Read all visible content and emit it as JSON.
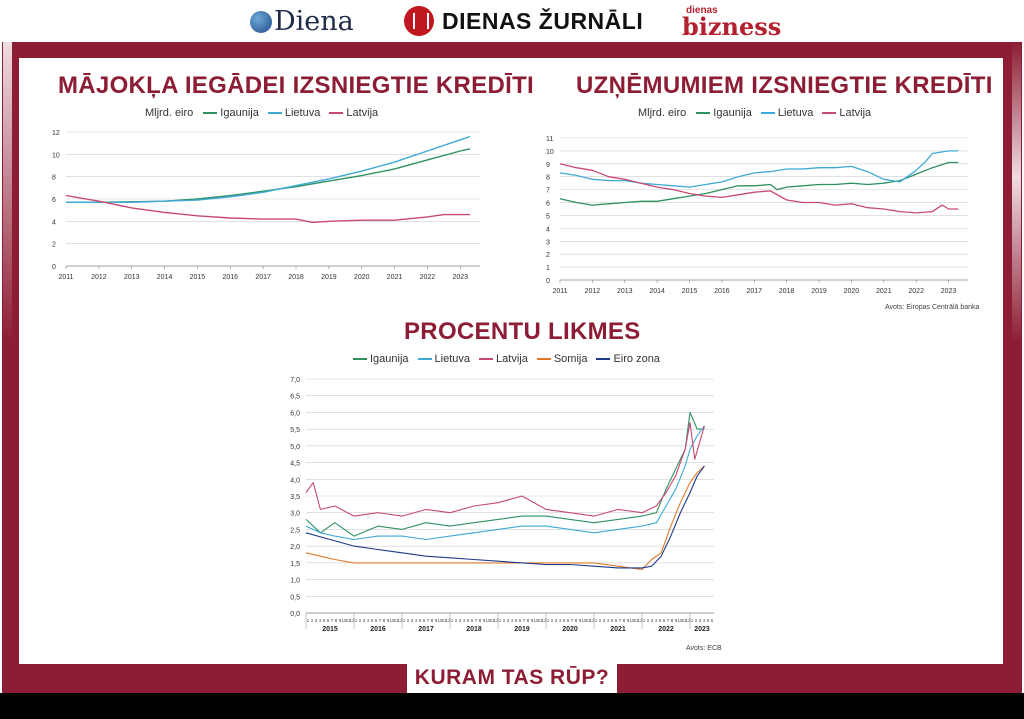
{
  "header": {
    "logos": [
      {
        "label": "Diena"
      },
      {
        "label": "DIENAS ŽURNĀLI"
      },
      {
        "label_small": "dienas",
        "label_big": "bizness"
      }
    ]
  },
  "footer": {
    "label": "KURAM TAS RŪP?"
  },
  "colors": {
    "frame": "#8d1d34",
    "igaunija": "#2e9160",
    "lietuva": "#3fa9d6",
    "latvija": "#c74a73",
    "somija": "#e07a2c",
    "eiro_zona": "#1e3a8a"
  },
  "charts": {
    "housing": {
      "title": "MĀJOKĻA IEGĀDEI IZSNIEGTIE KREDĪTI",
      "unit": "Mljrd. eiro",
      "legend": [
        {
          "name": "Igaunija",
          "color": "#2e9160"
        },
        {
          "name": "Lietuva",
          "color": "#3fa9d6"
        },
        {
          "name": "Latvija",
          "color": "#c74a73"
        }
      ]
    },
    "business": {
      "title": "UZŅĒMUMIEM IZSNIEGTIE KREDĪTI",
      "unit": "Mljrd. eiro",
      "legend": [
        {
          "name": "Igaunija",
          "color": "#2e9160"
        },
        {
          "name": "Lietuva",
          "color": "#3fa9d6"
        },
        {
          "name": "Latvija",
          "color": "#c74a73"
        }
      ],
      "source": "Avots: Eiropas Centrālā banka"
    },
    "rates": {
      "title": "PROCENTU LIKMES",
      "legend": [
        {
          "name": "Igaunija",
          "color": "#2e9160"
        },
        {
          "name": "Lietuva",
          "color": "#3fa9d6"
        },
        {
          "name": "Latvija",
          "color": "#c74a73"
        },
        {
          "name": "Somija",
          "color": "#e07a2c"
        },
        {
          "name": "Eiro zona",
          "color": "#1e3a8a"
        }
      ],
      "source": "Avots: ECB"
    }
  },
  "chart_data": [
    {
      "type": "line",
      "title": "MĀJOKĻA IEGĀDEI IZSNIEGTIE KREDĪTI",
      "ylabel": "Mljrd. eiro",
      "ylim": [
        0,
        12
      ],
      "yticks": [
        0,
        2,
        4,
        6,
        8,
        10,
        12
      ],
      "xlim": [
        2011,
        2023.6
      ],
      "xticks": [
        "2011",
        "2012",
        "2013",
        "2014",
        "2015",
        "2016",
        "2017",
        "2018",
        "2019",
        "2020",
        "2021",
        "2022",
        "2023"
      ],
      "grid": true,
      "legend_position": "top",
      "series": [
        {
          "name": "Igaunija",
          "color": "#2e9160",
          "x": [
            2011,
            2012,
            2013,
            2014,
            2015,
            2016,
            2017,
            2018,
            2019,
            2020,
            2021,
            2022,
            2023,
            2023.3
          ],
          "y": [
            5.7,
            5.7,
            5.75,
            5.8,
            6.0,
            6.3,
            6.7,
            7.1,
            7.6,
            8.1,
            8.7,
            9.5,
            10.3,
            10.5
          ]
        },
        {
          "name": "Lietuva",
          "color": "#3fa9d6",
          "x": [
            2011,
            2012,
            2013,
            2014,
            2015,
            2016,
            2017,
            2018,
            2019,
            2020,
            2021,
            2022,
            2023,
            2023.3
          ],
          "y": [
            5.7,
            5.7,
            5.7,
            5.8,
            5.9,
            6.2,
            6.6,
            7.2,
            7.8,
            8.5,
            9.3,
            10.3,
            11.3,
            11.6
          ]
        },
        {
          "name": "Latvija",
          "color": "#c74a73",
          "x": [
            2011,
            2012,
            2013,
            2014,
            2015,
            2016,
            2017,
            2018,
            2018.5,
            2019,
            2020,
            2021,
            2022,
            2022.5,
            2023,
            2023.3
          ],
          "y": [
            6.3,
            5.8,
            5.2,
            4.8,
            4.5,
            4.3,
            4.2,
            4.2,
            3.9,
            4.0,
            4.1,
            4.1,
            4.4,
            4.6,
            4.6,
            4.6
          ]
        }
      ]
    },
    {
      "type": "line",
      "title": "UZŅĒMUMIEM IZSNIEGTIE KREDĪTI",
      "ylabel": "Mljrd. eiro",
      "ylim": [
        0,
        11
      ],
      "yticks": [
        0,
        1,
        2,
        3,
        4,
        5,
        6,
        7,
        8,
        9,
        10,
        11
      ],
      "xlim": [
        2011,
        2023.6
      ],
      "xticks": [
        "2011",
        "2012",
        "2013",
        "2014",
        "2015",
        "2016",
        "2017",
        "2018",
        "2019",
        "2020",
        "2021",
        "2022",
        "2023"
      ],
      "grid": true,
      "legend_position": "top",
      "series": [
        {
          "name": "Igaunija",
          "color": "#2e9160",
          "x": [
            2011,
            2011.5,
            2012,
            2012.5,
            2013,
            2013.5,
            2014,
            2014.5,
            2015,
            2015.5,
            2016,
            2016.5,
            2017,
            2017.5,
            2017.7,
            2018,
            2018.5,
            2019,
            2019.5,
            2020,
            2020.5,
            2021,
            2021.5,
            2022,
            2022.5,
            2023,
            2023.3
          ],
          "y": [
            6.3,
            6.0,
            5.8,
            5.9,
            6.0,
            6.1,
            6.1,
            6.3,
            6.5,
            6.7,
            7.0,
            7.3,
            7.3,
            7.4,
            7.0,
            7.2,
            7.3,
            7.4,
            7.4,
            7.5,
            7.4,
            7.5,
            7.7,
            8.2,
            8.7,
            9.1,
            9.1
          ]
        },
        {
          "name": "Lietuva",
          "color": "#3fa9d6",
          "x": [
            2011,
            2011.5,
            2012,
            2012.5,
            2013,
            2013.5,
            2014,
            2014.5,
            2015,
            2015.5,
            2016,
            2016.5,
            2017,
            2017.5,
            2018,
            2018.5,
            2019,
            2019.5,
            2020,
            2020.5,
            2021,
            2021.5,
            2022,
            2022.3,
            2022.5,
            2023,
            2023.3
          ],
          "y": [
            8.3,
            8.1,
            7.8,
            7.7,
            7.7,
            7.5,
            7.4,
            7.3,
            7.2,
            7.4,
            7.6,
            8.0,
            8.3,
            8.4,
            8.6,
            8.6,
            8.7,
            8.7,
            8.8,
            8.4,
            7.8,
            7.6,
            8.5,
            9.2,
            9.8,
            10.0,
            10.0
          ]
        },
        {
          "name": "Latvija",
          "color": "#c74a73",
          "x": [
            2011,
            2011.5,
            2012,
            2012.5,
            2013,
            2013.5,
            2014,
            2014.5,
            2015,
            2015.5,
            2016,
            2016.5,
            2017,
            2017.5,
            2018,
            2018.5,
            2019,
            2019.5,
            2020,
            2020.5,
            2021,
            2021.5,
            2022,
            2022.5,
            2022.8,
            2023,
            2023.3
          ],
          "y": [
            9.0,
            8.7,
            8.5,
            8.0,
            7.8,
            7.5,
            7.2,
            7.0,
            6.7,
            6.5,
            6.4,
            6.6,
            6.8,
            6.9,
            6.2,
            6.0,
            6.0,
            5.8,
            5.9,
            5.6,
            5.5,
            5.3,
            5.2,
            5.3,
            5.8,
            5.5,
            5.5
          ]
        }
      ]
    },
    {
      "type": "line",
      "title": "PROCENTU LIKMES",
      "ylim": [
        0,
        7
      ],
      "yticks": [
        "0,0",
        "0,5",
        "1,0",
        "1,5",
        "2,0",
        "2,5",
        "3,0",
        "3,5",
        "4,0",
        "4,5",
        "5,0",
        "5,5",
        "6,0",
        "6,5",
        "7,0"
      ],
      "xlim": [
        2015,
        2023.5
      ],
      "xticks": [
        "2015",
        "2016",
        "2017",
        "2018",
        "2019",
        "2020",
        "2021",
        "2022",
        "2023"
      ],
      "month_tick_labels": [
        "1",
        "2",
        "3",
        "4",
        "5",
        "6",
        "7",
        "8",
        "9",
        "10",
        "11",
        "12"
      ],
      "grid": true,
      "legend_position": "top",
      "series": [
        {
          "name": "Igaunija",
          "color": "#2e9160",
          "x": [
            2015,
            2015.3,
            2015.6,
            2016,
            2016.5,
            2017,
            2017.5,
            2018,
            2018.5,
            2019,
            2019.5,
            2020,
            2020.5,
            2021,
            2021.5,
            2022,
            2022.3,
            2022.5,
            2022.7,
            2022.9,
            2023,
            2023.15,
            2023.3
          ],
          "y": [
            2.8,
            2.4,
            2.7,
            2.3,
            2.6,
            2.5,
            2.7,
            2.6,
            2.7,
            2.8,
            2.9,
            2.9,
            2.8,
            2.7,
            2.8,
            2.9,
            3.0,
            3.7,
            4.3,
            4.9,
            6.0,
            5.5,
            5.5
          ]
        },
        {
          "name": "Lietuva",
          "color": "#3fa9d6",
          "x": [
            2015,
            2015.3,
            2015.6,
            2016,
            2016.5,
            2017,
            2017.5,
            2018,
            2018.5,
            2019,
            2019.5,
            2020,
            2020.5,
            2021,
            2021.5,
            2022,
            2022.3,
            2022.5,
            2022.7,
            2022.9,
            2023,
            2023.15,
            2023.3
          ],
          "y": [
            2.6,
            2.4,
            2.3,
            2.2,
            2.3,
            2.3,
            2.2,
            2.3,
            2.4,
            2.5,
            2.6,
            2.6,
            2.5,
            2.4,
            2.5,
            2.6,
            2.7,
            3.2,
            3.7,
            4.4,
            4.9,
            5.3,
            5.6
          ]
        },
        {
          "name": "Latvija",
          "color": "#c74a73",
          "x": [
            2015,
            2015.15,
            2015.3,
            2015.6,
            2016,
            2016.5,
            2017,
            2017.5,
            2018,
            2018.5,
            2019,
            2019.5,
            2020,
            2020.5,
            2021,
            2021.5,
            2022,
            2022.3,
            2022.5,
            2022.7,
            2022.9,
            2023,
            2023.1,
            2023.3
          ],
          "y": [
            3.6,
            3.9,
            3.1,
            3.2,
            2.9,
            3.0,
            2.9,
            3.1,
            3.0,
            3.2,
            3.3,
            3.5,
            3.1,
            3.0,
            2.9,
            3.1,
            3.0,
            3.2,
            3.6,
            4.1,
            4.9,
            5.7,
            4.6,
            5.6
          ]
        },
        {
          "name": "Somija",
          "color": "#e07a2c",
          "x": [
            2015,
            2015.3,
            2015.6,
            2016,
            2016.5,
            2017,
            2017.5,
            2018,
            2018.5,
            2019,
            2019.5,
            2020,
            2020.5,
            2021,
            2021.5,
            2022,
            2022.2,
            2022.4,
            2022.6,
            2022.8,
            2023,
            2023.15,
            2023.3
          ],
          "y": [
            1.8,
            1.7,
            1.6,
            1.5,
            1.5,
            1.5,
            1.5,
            1.5,
            1.5,
            1.5,
            1.5,
            1.5,
            1.5,
            1.5,
            1.4,
            1.3,
            1.6,
            1.8,
            2.6,
            3.3,
            3.9,
            4.2,
            4.4
          ]
        },
        {
          "name": "Eiro zona",
          "color": "#1e3a8a",
          "x": [
            2015,
            2015.5,
            2016,
            2016.5,
            2017,
            2017.5,
            2018,
            2018.5,
            2019,
            2019.5,
            2020,
            2020.5,
            2021,
            2021.5,
            2022,
            2022.2,
            2022.4,
            2022.6,
            2022.8,
            2023,
            2023.15,
            2023.3
          ],
          "y": [
            2.4,
            2.2,
            2.0,
            1.9,
            1.8,
            1.7,
            1.65,
            1.6,
            1.55,
            1.5,
            1.45,
            1.45,
            1.4,
            1.35,
            1.35,
            1.4,
            1.7,
            2.3,
            3.0,
            3.6,
            4.1,
            4.4
          ]
        }
      ]
    }
  ]
}
